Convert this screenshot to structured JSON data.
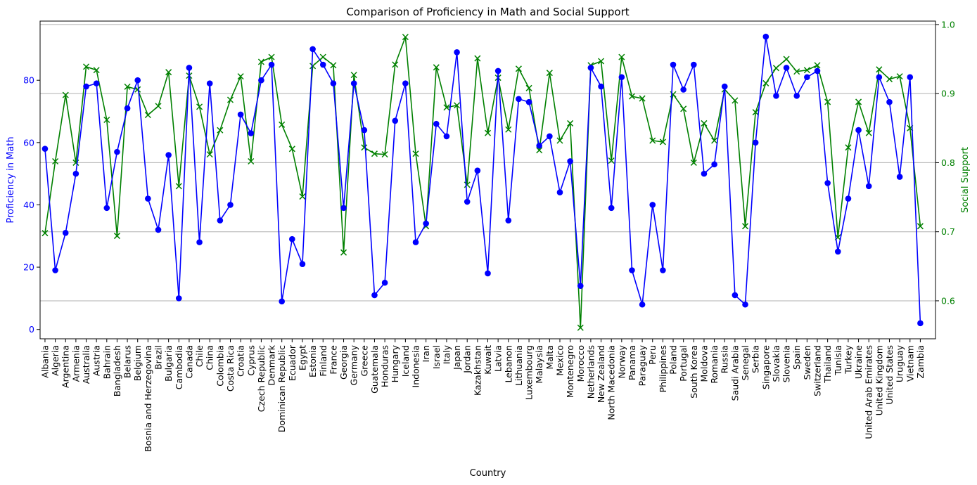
{
  "chart_data": {
    "type": "line",
    "title": "Comparison of Proficiency in Math and Social Support",
    "xlabel": "Country",
    "ylabel_left": "Proficiency in Math",
    "ylabel_right": "Social Support",
    "ylim_left": [
      -3,
      99
    ],
    "ylim_right": [
      0.545,
      1.005
    ],
    "yticks_left": [
      0,
      20,
      40,
      60,
      80
    ],
    "yticks_right": [
      0.6,
      0.7,
      0.8,
      0.9,
      1.0
    ],
    "ytick_labels_left": [
      "0",
      "20",
      "40",
      "60",
      "80"
    ],
    "ytick_labels_right": [
      "0.6",
      "0.7",
      "0.8",
      "0.9",
      "1.0"
    ],
    "grid": "horizontal on right axis",
    "colors": {
      "math": "#0000ff",
      "social": "#008000",
      "grid": "#b0b0b0",
      "axis": "#000000"
    },
    "categories": [
      "Albania",
      "Algeria",
      "Argentina",
      "Armenia",
      "Australia",
      "Austria",
      "Bahrain",
      "Bangladesh",
      "Belarus",
      "Belgium",
      "Bosnia and Herzegovina",
      "Brazil",
      "Bulgaria",
      "Cambodia",
      "Canada",
      "Chile",
      "China",
      "Colombia",
      "Costa Rica",
      "Croatia",
      "Cyprus",
      "Czech Republic",
      "Denmark",
      "Dominican Republic",
      "Ecuador",
      "Egypt",
      "Estonia",
      "Finland",
      "France",
      "Georgia",
      "Germany",
      "Greece",
      "Guatemala",
      "Honduras",
      "Hungary",
      "Iceland",
      "Indonesia",
      "Iran",
      "Israel",
      "Italy",
      "Japan",
      "Jordan",
      "Kazakhstan",
      "Kuwait",
      "Latvia",
      "Lebanon",
      "Lithuania",
      "Luxembourg",
      "Malaysia",
      "Malta",
      "Mexico",
      "Montenegro",
      "Morocco",
      "Netherlands",
      "New Zealand",
      "North Macedonia",
      "Norway",
      "Panama",
      "Paraguay",
      "Peru",
      "Philippines",
      "Poland",
      "Portugal",
      "South Korea",
      "Moldova",
      "Romania",
      "Russia",
      "Saudi Arabia",
      "Senegal",
      "Serbia",
      "Singapore",
      "Slovakia",
      "Slovenia",
      "Spain",
      "Sweden",
      "Switzerland",
      "Thailand",
      "Tunisia",
      "Turkey",
      "Ukraine",
      "United Arab Emirates",
      "United Kingdom",
      "United States",
      "Uruguay",
      "Vietnam",
      "Zambia"
    ],
    "series": [
      {
        "name": "Proficiency in Math",
        "axis": "left",
        "marker": "circle",
        "values": [
          58,
          19,
          31,
          50,
          78,
          79,
          39,
          57,
          71,
          80,
          42,
          32,
          56,
          10,
          84,
          28,
          79,
          35,
          40,
          69,
          63,
          80,
          85,
          9,
          29,
          21,
          90,
          85,
          79,
          39,
          79,
          64,
          11,
          15,
          67,
          79,
          28,
          34,
          66,
          62,
          89,
          41,
          51,
          18,
          83,
          35,
          74,
          73,
          59,
          62,
          44,
          54,
          14,
          84,
          78,
          39,
          81,
          19,
          8,
          40,
          19,
          85,
          77,
          85,
          50,
          53,
          78,
          11,
          8,
          60,
          94,
          75,
          84,
          75,
          81,
          83,
          47,
          25,
          42,
          64,
          46,
          81,
          73,
          49,
          81,
          2
        ]
      },
      {
        "name": "Social Support",
        "axis": "right",
        "marker": "x",
        "values": [
          0.698,
          0.802,
          0.898,
          0.8,
          0.939,
          0.934,
          0.862,
          0.694,
          0.91,
          0.906,
          0.869,
          0.882,
          0.931,
          0.766,
          0.926,
          0.881,
          0.812,
          0.847,
          0.891,
          0.925,
          0.802,
          0.946,
          0.953,
          0.855,
          0.82,
          0.751,
          0.94,
          0.953,
          0.941,
          0.67,
          0.927,
          0.822,
          0.813,
          0.812,
          0.942,
          0.982,
          0.813,
          0.708,
          0.938,
          0.88,
          0.883,
          0.768,
          0.951,
          0.843,
          0.923,
          0.848,
          0.936,
          0.908,
          0.818,
          0.93,
          0.832,
          0.857,
          0.561,
          0.941,
          0.947,
          0.803,
          0.953,
          0.896,
          0.893,
          0.832,
          0.83,
          0.899,
          0.878,
          0.8,
          0.857,
          0.832,
          0.906,
          0.89,
          0.708,
          0.873,
          0.915,
          0.937,
          0.95,
          0.932,
          0.934,
          0.941,
          0.888,
          0.692,
          0.822,
          0.888,
          0.843,
          0.935,
          0.921,
          0.925,
          0.85,
          0.708
        ]
      }
    ]
  }
}
